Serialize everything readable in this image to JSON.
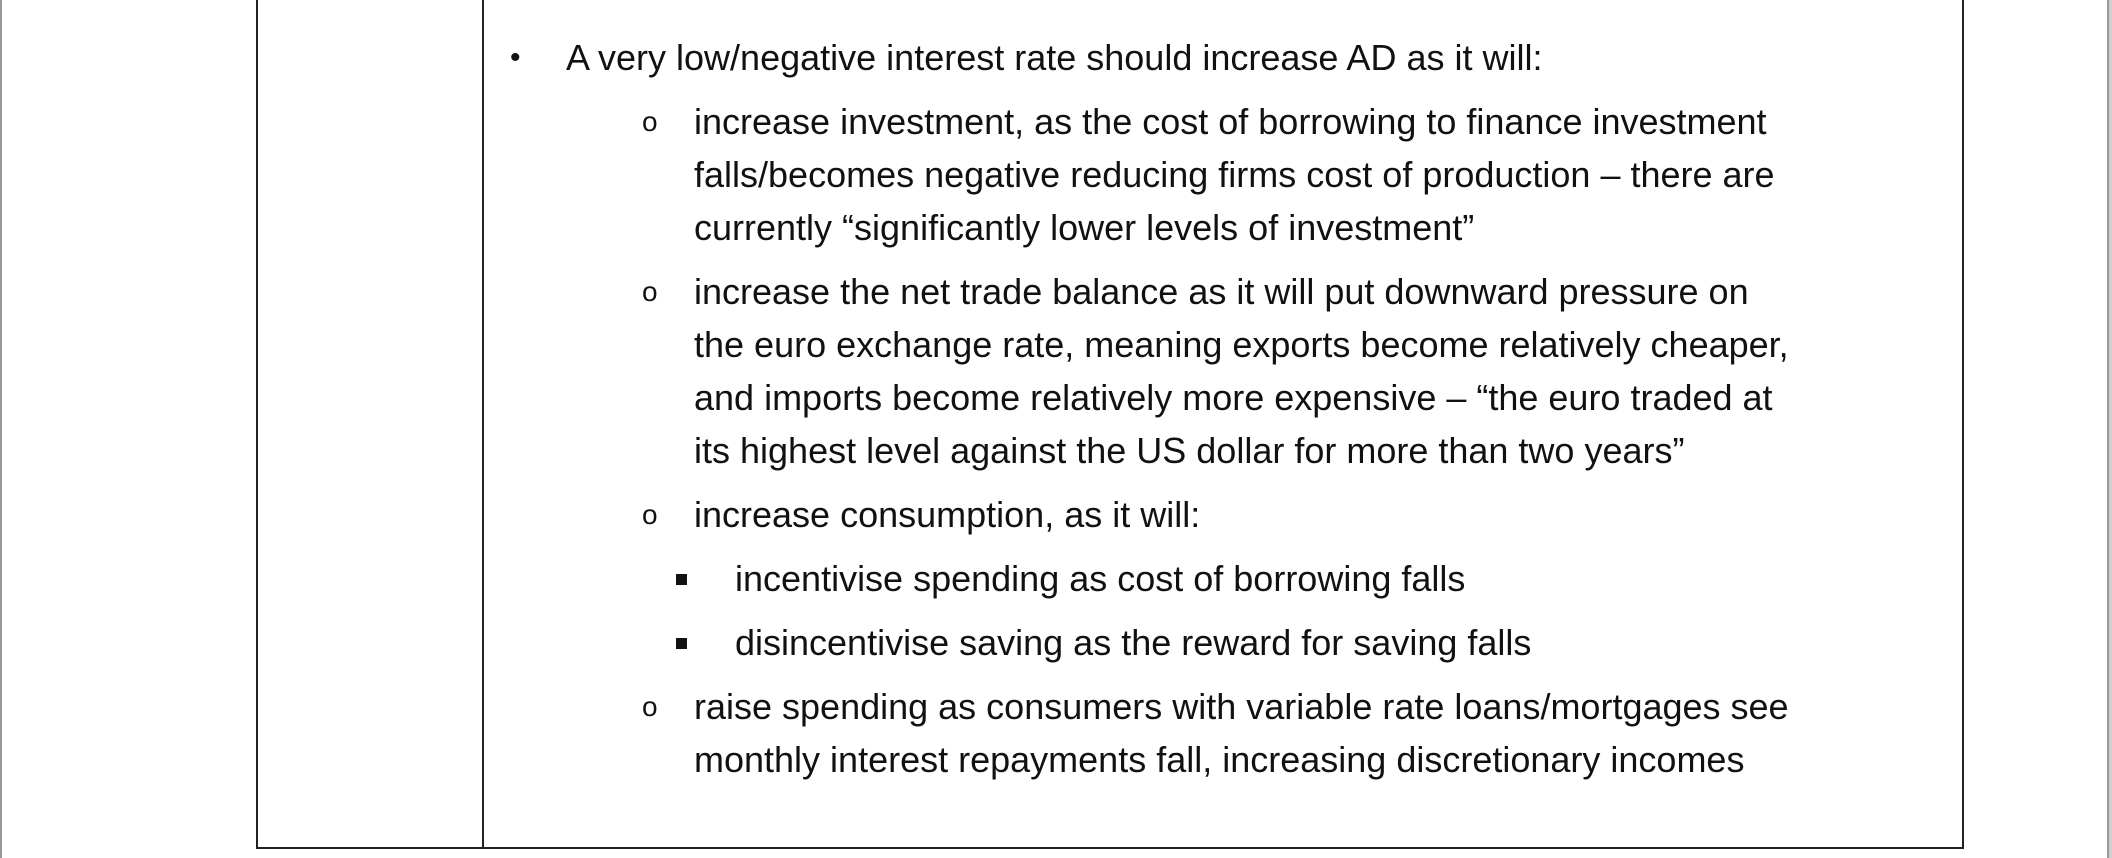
{
  "items": [
    {
      "level": 1,
      "lines": [
        "A very low/negative interest rate should increase AD as it will:"
      ]
    },
    {
      "level": 2,
      "lines": [
        "increase investment, as the cost of borrowing to finance investment",
        "falls/becomes negative reducing firms cost of production – there are",
        "currently “significantly lower levels of investment”"
      ]
    },
    {
      "level": 2,
      "lines": [
        "increase the net trade balance as it will put downward pressure on",
        "the euro exchange rate, meaning exports become relatively cheaper,",
        "and imports become relatively more expensive – “the euro traded at",
        "its highest level against the US dollar for more than two years”"
      ]
    },
    {
      "level": 2,
      "lines": [
        "increase consumption, as it will:"
      ]
    },
    {
      "level": 3,
      "lines": [
        "incentivise spending as cost of borrowing falls"
      ]
    },
    {
      "level": 3,
      "lines": [
        "disincentivise saving as the reward for saving falls"
      ]
    },
    {
      "level": 2,
      "lines": [
        "raise spending as consumers with variable rate loans/mortgages see",
        "monthly interest repayments fall, increasing discretionary incomes"
      ]
    }
  ],
  "markers": {
    "1": "•",
    "2": "o",
    "3": "square-bullet"
  }
}
